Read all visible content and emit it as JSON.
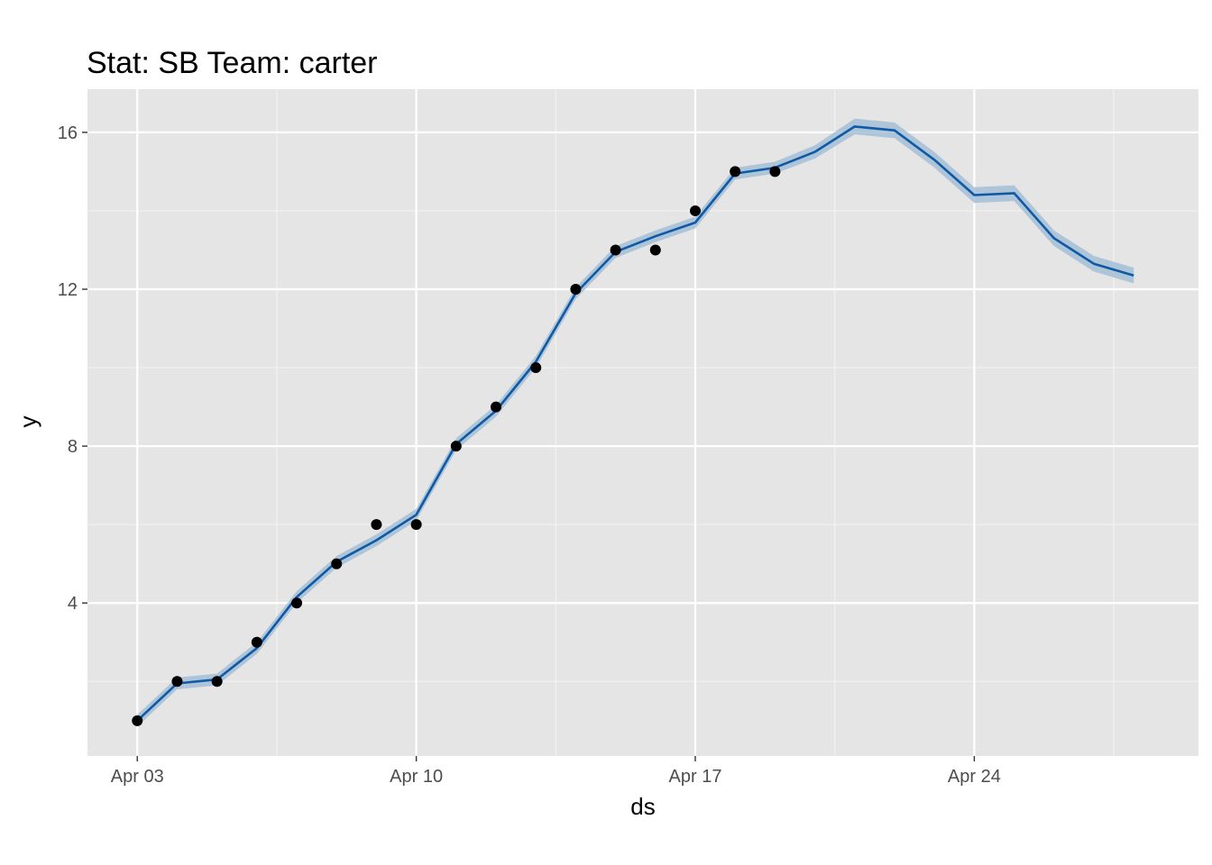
{
  "chart_data": {
    "type": "line",
    "title": "Stat: SB Team: carter",
    "xlabel": "ds",
    "ylabel": "y",
    "x_ticks": [
      "Apr 03",
      "Apr 10",
      "Apr 17",
      "Apr 24"
    ],
    "y_ticks": [
      4,
      8,
      12,
      16
    ],
    "xlim": [
      "2024-04-01T18:00",
      "2024-04-29T15:00"
    ],
    "ylim": [
      0.1,
      17.1
    ],
    "grid": true,
    "panel_background": "#e5e5e5",
    "series": [
      {
        "kind": "points",
        "color": "#000000",
        "x": [
          "2024-04-03",
          "2024-04-04",
          "2024-04-05",
          "2024-04-06",
          "2024-04-07",
          "2024-04-08",
          "2024-04-09",
          "2024-04-10",
          "2024-04-11",
          "2024-04-12",
          "2024-04-13",
          "2024-04-14",
          "2024-04-15",
          "2024-04-16",
          "2024-04-17",
          "2024-04-18",
          "2024-04-19"
        ],
        "y": [
          1,
          2,
          2,
          3,
          4,
          5,
          6,
          6,
          8,
          9,
          10,
          12,
          13,
          13,
          14,
          15,
          15
        ]
      },
      {
        "kind": "line",
        "color": "#0f5aa5",
        "x": [
          "2024-04-03",
          "2024-04-04",
          "2024-04-05",
          "2024-04-06",
          "2024-04-07",
          "2024-04-08",
          "2024-04-09",
          "2024-04-10",
          "2024-04-11",
          "2024-04-12",
          "2024-04-13",
          "2024-04-14",
          "2024-04-15",
          "2024-04-16",
          "2024-04-17",
          "2024-04-18",
          "2024-04-19",
          "2024-04-20",
          "2024-04-21",
          "2024-04-22",
          "2024-04-23",
          "2024-04-24",
          "2024-04-25",
          "2024-04-26",
          "2024-04-27",
          "2024-04-28"
        ],
        "y": [
          1.0,
          1.95,
          2.05,
          2.85,
          4.15,
          5.05,
          5.6,
          6.25,
          8.05,
          8.9,
          10.15,
          11.9,
          12.95,
          13.35,
          13.7,
          14.95,
          15.1,
          15.5,
          16.15,
          16.05,
          15.3,
          14.4,
          14.45,
          13.3,
          12.65,
          12.35
        ],
        "band": {
          "color": "#9fbcd6",
          "lower": [
            0.85,
            1.8,
            1.9,
            2.7,
            4.0,
            4.9,
            5.45,
            6.1,
            7.9,
            8.75,
            10.0,
            11.75,
            12.8,
            13.2,
            13.55,
            14.8,
            14.95,
            15.33,
            15.95,
            15.85,
            15.1,
            14.2,
            14.25,
            13.1,
            12.45,
            12.15
          ],
          "upper": [
            1.15,
            2.1,
            2.2,
            3.0,
            4.3,
            5.2,
            5.75,
            6.4,
            8.2,
            9.05,
            10.3,
            12.05,
            13.1,
            13.5,
            13.85,
            15.1,
            15.25,
            15.67,
            16.35,
            16.25,
            15.5,
            14.6,
            14.65,
            13.5,
            12.85,
            12.55
          ]
        }
      }
    ]
  }
}
